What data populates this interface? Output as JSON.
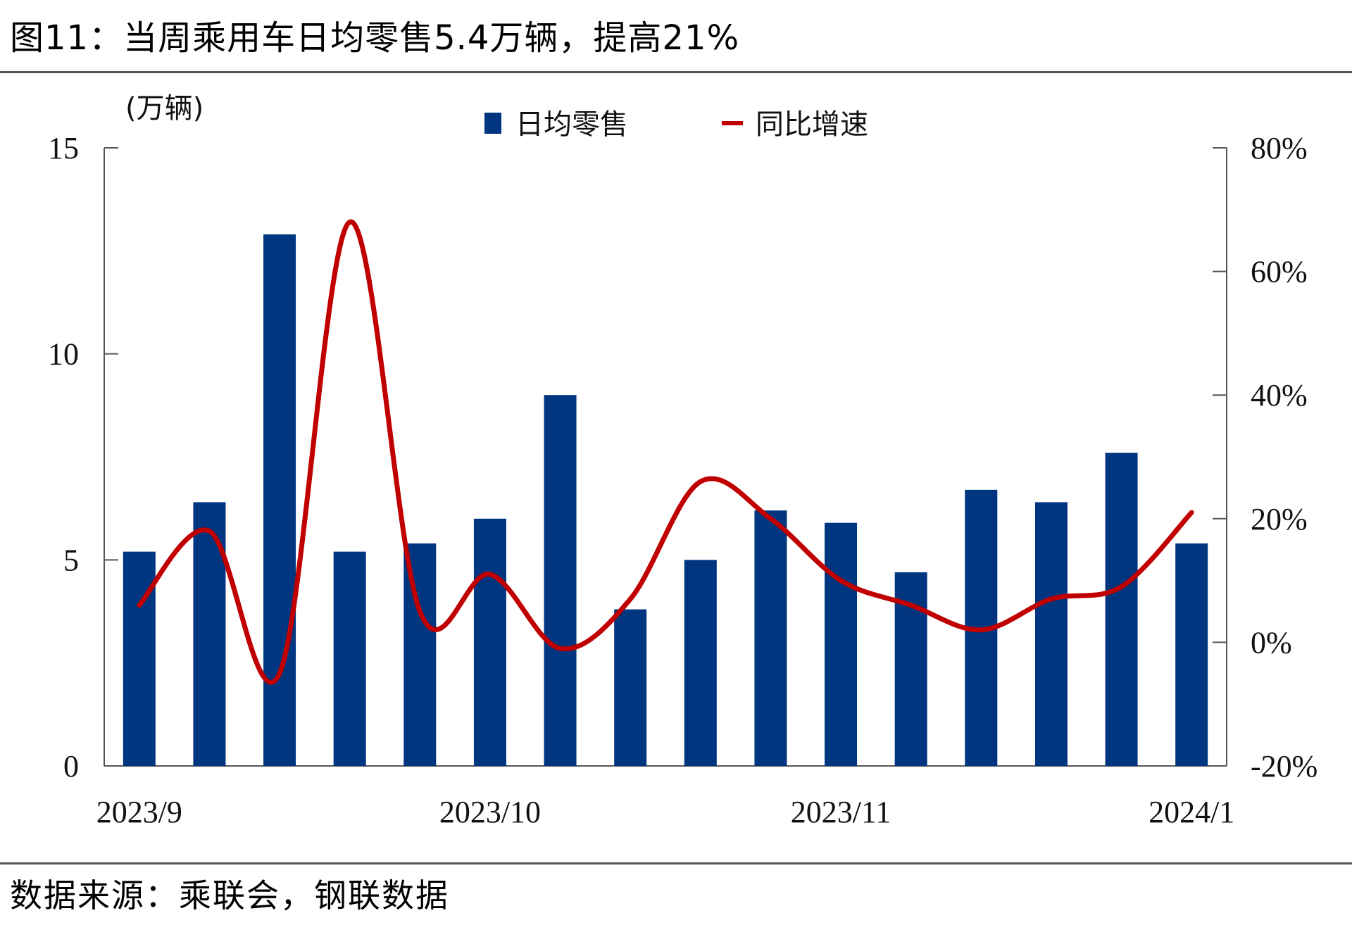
{
  "title": "图11：当周乘用车日均零售5.4万辆，提高21%",
  "source": "数据来源：乘联会，钢联数据",
  "chart_data": {
    "type": "bar+line",
    "left_axis_unit": "(万辆)",
    "y_left": {
      "min": 0,
      "max": 15,
      "ticks": [
        0,
        5,
        10,
        15
      ],
      "tick_labels": [
        "0",
        "5",
        "10",
        "15"
      ]
    },
    "y_right": {
      "min": -20,
      "max": 80,
      "ticks": [
        -20,
        0,
        20,
        40,
        60,
        80
      ],
      "tick_labels": [
        "-20%",
        "0%",
        "20%",
        "40%",
        "60%",
        "80%"
      ]
    },
    "x_tick_labels": [
      {
        "label": "2023/9",
        "index": 0
      },
      {
        "label": "2023/10",
        "index": 5
      },
      {
        "label": "2023/11",
        "index": 10
      },
      {
        "label": "2024/1",
        "index": 15
      }
    ],
    "series": [
      {
        "name": "日均零售",
        "type": "bar",
        "axis": "left",
        "color": "#003580",
        "values": [
          5.2,
          6.4,
          12.9,
          5.2,
          5.4,
          6.0,
          9.0,
          3.8,
          5.0,
          6.2,
          5.9,
          4.7,
          6.7,
          6.4,
          7.6,
          5.4
        ]
      },
      {
        "name": "同比增速",
        "type": "line",
        "axis": "right",
        "color": "#c00000",
        "values": [
          6,
          18,
          -5,
          68,
          5,
          11,
          -1,
          7,
          26,
          20,
          10,
          6,
          2,
          7,
          9,
          21
        ]
      }
    ],
    "legend_position": "top-center",
    "grid": false
  }
}
